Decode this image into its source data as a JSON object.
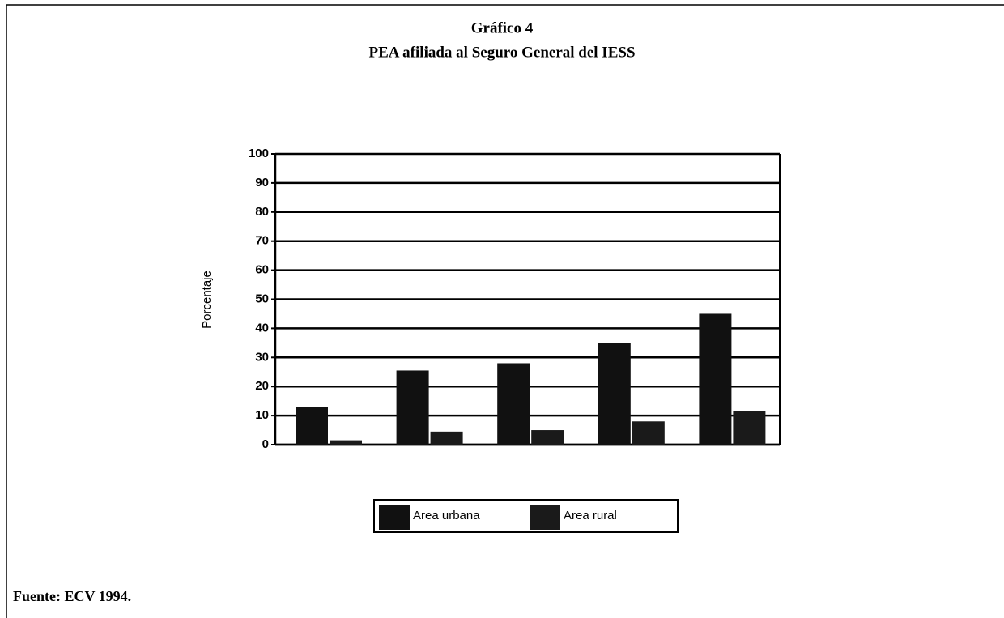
{
  "chart_data": {
    "type": "bar",
    "title": "Gráfico 4",
    "subtitle": "PEA afiliada al Seguro General del IESS",
    "y_label": "Porcentaje",
    "source": "Fuente: ECV 1994.",
    "categories": [
      null,
      null,
      null,
      null,
      null
    ],
    "series": [
      {
        "name": "Area urbana",
        "color": "#111111",
        "values": [
          13,
          25.5,
          28,
          35,
          45
        ]
      },
      {
        "name": "Area rural",
        "color": "#1a1a1a",
        "values": [
          1.5,
          4.5,
          5,
          8,
          11.5
        ]
      }
    ],
    "ylim": [
      0,
      100
    ],
    "yticks": [
      0,
      10,
      20,
      30,
      40,
      50,
      60,
      70,
      80,
      90,
      100
    ],
    "grid": true,
    "legend": "bottom"
  }
}
